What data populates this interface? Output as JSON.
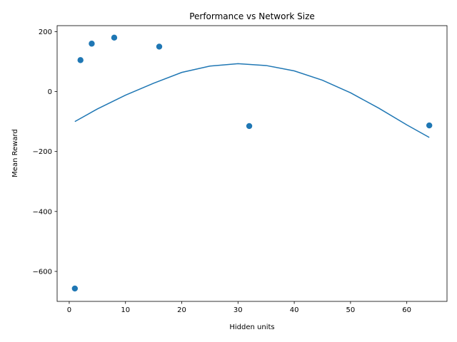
{
  "chart_data": {
    "type": "scatter",
    "title": "Performance vs Network Size",
    "xlabel": "Hidden units",
    "ylabel": "Mean Reward",
    "xlim": [
      -2.15,
      67.15
    ],
    "ylim": [
      -700,
      220
    ],
    "xticks": [
      0,
      10,
      20,
      30,
      40,
      50,
      60
    ],
    "yticks": [
      200,
      0,
      -200,
      -400,
      -600
    ],
    "ytick_labels": [
      "200",
      "0",
      "−200",
      "−400",
      "−600"
    ],
    "grid": false,
    "colors": {
      "series": "#1f77b4",
      "axis": "#000000"
    },
    "series": [
      {
        "type": "scatter",
        "x": [
          1,
          2,
          4,
          8,
          16,
          32,
          64
        ],
        "y": [
          -657,
          105,
          160,
          180,
          150,
          -115,
          -113
        ]
      },
      {
        "type": "line",
        "fit": "quadratic",
        "x_range": [
          1,
          64
        ],
        "points": [
          [
            1,
            -100
          ],
          [
            5,
            -58
          ],
          [
            10,
            -12
          ],
          [
            15,
            28
          ],
          [
            20,
            64
          ],
          [
            25,
            85
          ],
          [
            30,
            93
          ],
          [
            35,
            87
          ],
          [
            40,
            69
          ],
          [
            45,
            38
          ],
          [
            50,
            -4
          ],
          [
            55,
            -55
          ],
          [
            60,
            -111
          ],
          [
            64,
            -153
          ]
        ]
      }
    ]
  }
}
